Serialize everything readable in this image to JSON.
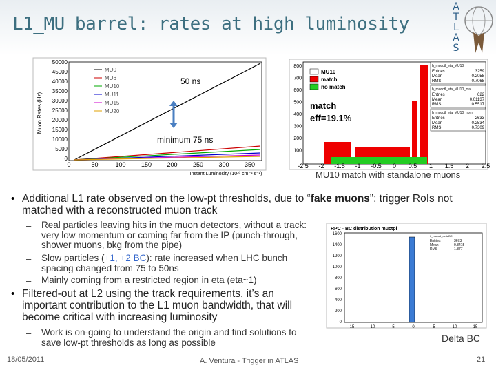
{
  "header": {
    "title": "L1_MU barrel: rates at high luminosity",
    "logo_letters": [
      "A",
      "T",
      "L",
      "A",
      "S"
    ]
  },
  "plot_rates": {
    "y_label": "Muon Rates (Hz)",
    "x_label": "Instant Luminosity (10³⁰ cm⁻² s⁻¹)",
    "yticks": [
      "50000",
      "45000",
      "40000",
      "35000",
      "30000",
      "25000",
      "20000",
      "15000",
      "10000",
      "5000",
      "0"
    ],
    "xticks": [
      "0",
      "50",
      "100",
      "150",
      "200",
      "250",
      "300",
      "350"
    ],
    "legend": [
      "MU0",
      "MU6",
      "MU10",
      "MU11",
      "MU15",
      "MU20"
    ],
    "annotations": [
      "50 ns",
      "minimum 75 ns"
    ]
  },
  "plot_match": {
    "legend": [
      "MU10",
      "match",
      "no match"
    ],
    "annotation": [
      "match",
      "eff=19.1%"
    ],
    "yticks": [
      "800",
      "700",
      "600",
      "500",
      "400",
      "300",
      "200",
      "100"
    ],
    "xticks": [
      "-2.5",
      "-2",
      "-1.5",
      "-1",
      "-0.5",
      "0",
      "0.5",
      "1",
      "1.5",
      "2",
      "2.5"
    ],
    "stats": [
      {
        "name": "h_mucotl_eta_MU10",
        "rows": [
          [
            "Entries",
            "3259"
          ],
          [
            "Mean",
            "0.2058"
          ],
          [
            "RMS",
            "0.7068"
          ]
        ]
      },
      {
        "name": "h_mucotl_eta_MU10_ma",
        "rows": [
          [
            "Entries",
            "622"
          ],
          [
            "Mean",
            "0.01137"
          ],
          [
            "RMS",
            "0.5517"
          ]
        ]
      },
      {
        "name": "h_mucotl_eta_MU10_nom",
        "rows": [
          [
            "Entries",
            "2633"
          ],
          [
            "Mean",
            "0.2534"
          ],
          [
            "RMS",
            "0.7309"
          ]
        ]
      }
    ],
    "caption": "MU10 match with standalone muons"
  },
  "bullets": [
    {
      "parts": [
        "Additional L1 rate observed on the low-pt thresholds, due to “",
        "fake muons",
        "”: trigger RoIs not matched with a reconstructed muon track"
      ],
      "sub": [
        {
          "parts": [
            "Real particles leaving hits in the muon detectors, without a track: very low momentum or coming far from the IP (punch-through, shower muons, bkg from the pipe)"
          ]
        },
        {
          "parts": [
            "Slow particles (",
            "+1, +2 BC",
            "): rate increased when LHC bunch spacing changed from 75 to 50ns"
          ]
        },
        {
          "parts": [
            "Mainly coming from a restricted region in eta (eta~1)"
          ]
        }
      ]
    },
    {
      "parts": [
        "Filtered-out at L2 using the track requirements, it’s an important contribution to the L1 muon bandwidth, that will become critical with increasing luminosity"
      ],
      "sub": [
        {
          "parts": [
            "Work is on-going to understand the origin and find solutions to save low-pt thresholds as long as possible"
          ]
        }
      ]
    }
  ],
  "plot_bc": {
    "title": "RPC - BC distribution muctpi",
    "stats": {
      "name": "h_mucotl_deltaBC",
      "rows": [
        [
          "Entries",
          "3673"
        ],
        [
          "Mean",
          "0.8415"
        ],
        [
          "RMS",
          "1.877"
        ]
      ]
    },
    "yticks": [
      "1600",
      "1400",
      "1200",
      "1000",
      "800",
      "600",
      "400",
      "200",
      "0"
    ],
    "xticks": [
      "-15",
      "-10",
      "-5",
      "0",
      "5",
      "10",
      "15"
    ],
    "caption": "Delta BC"
  },
  "footer": {
    "date": "18/05/2011",
    "center": "A. Ventura - Trigger in ATLAS",
    "page": "21"
  }
}
